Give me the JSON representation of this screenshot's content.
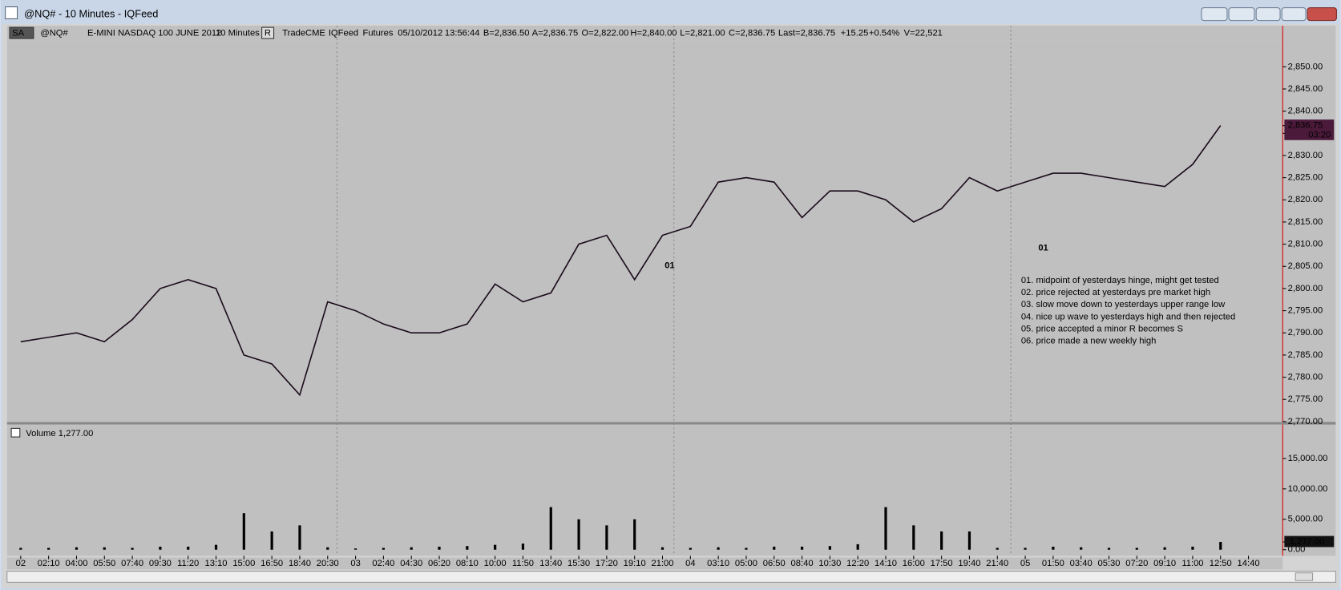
{
  "window": {
    "title": "@NQ# - 10 Minutes - IQFeed"
  },
  "toolbar": {
    "items": [
      "SA",
      "@NQ#",
      "E-MINI NASDAQ 100 JUNE 2012",
      "10 Minutes",
      "R",
      "Trade",
      "CME",
      "IQFeed",
      "Futures",
      "05/10/2012",
      "13:56:44",
      "B=2,836.50",
      "A=2,836.75",
      "O=2,822.00",
      "H=2,840.00",
      "L=2,821.00",
      "C=2,836.75",
      "Last=2,836.75",
      "+15.25",
      "+0.54%",
      "V=22,521"
    ]
  },
  "notes": [
    "01. midpoint of yesterdays hinge, might get tested",
    "02. price rejected at yesterdays pre market high",
    "03. slow move down to yesterdays upper range low",
    "04. nice up wave to yesterdays high and then rejected",
    "05. price accepted a minor R becomes S",
    "06. price made a new weekly high"
  ],
  "chart_data": [
    {
      "type": "line",
      "color": "#1a0a1a",
      "categories": [
        "02",
        "02:10",
        "04:00",
        "05:50",
        "07:40",
        "09:30",
        "11:20",
        "13:10",
        "15:00",
        "16:50",
        "18:40",
        "20:30",
        "03",
        "02:40",
        "04:30",
        "06:20",
        "08:10",
        "10:00",
        "11:50",
        "13:40",
        "15:30",
        "17:20",
        "19:10",
        "21:00",
        "04",
        "03:10",
        "05:00",
        "06:50",
        "08:40",
        "10:30",
        "12:20",
        "14:10",
        "16:00",
        "17:50",
        "19:40",
        "21:40",
        "05",
        "01:50",
        "03:40",
        "05:30",
        "07:20",
        "09:10",
        "11:00",
        "12:50",
        "14:40"
      ],
      "values": [
        2788,
        2789,
        2790,
        2788,
        2793,
        2800,
        2802,
        2800,
        2785,
        2783,
        2776,
        2797,
        2795,
        2792,
        2790,
        2790,
        2792,
        2801,
        2797,
        2799,
        2810,
        2812,
        2802,
        2812,
        2814,
        2824,
        2825,
        2824,
        2816,
        2822,
        2822,
        2820,
        2815,
        2818,
        2825,
        2822,
        2824,
        2826,
        2826,
        2825,
        2824,
        2823,
        2828,
        2836.75,
        null
      ],
      "ylim": [
        2770,
        2856
      ],
      "yticks": [
        {
          "value": 2770,
          "label": "2,770.00"
        },
        {
          "value": 2775,
          "label": "2,775.00"
        },
        {
          "value": 2780,
          "label": "2,780.00"
        },
        {
          "value": 2785,
          "label": "2,785.00"
        },
        {
          "value": 2790,
          "label": "2,790.00"
        },
        {
          "value": 2795,
          "label": "2,795.00"
        },
        {
          "value": 2800,
          "label": "2,800.00"
        },
        {
          "value": 2805,
          "label": "2,805.00"
        },
        {
          "value": 2810,
          "label": "2,810.00"
        },
        {
          "value": 2815,
          "label": "2,815.00"
        },
        {
          "value": 2820,
          "label": "2,820.00"
        },
        {
          "value": 2825,
          "label": "2,825.00"
        },
        {
          "value": 2830,
          "label": "2,830.00"
        },
        {
          "value": 2835,
          "label": "2,835.00"
        },
        {
          "value": 2840,
          "label": "2,840.00"
        },
        {
          "value": 2845,
          "label": "2,845.00"
        },
        {
          "value": 2850,
          "label": "2,850.00"
        }
      ],
      "last_price": {
        "value": 2836.75,
        "label": "2,836.75"
      },
      "bar_timer": "03:20",
      "annotations": [
        "01",
        "01"
      ]
    },
    {
      "type": "bar",
      "title": "Volume",
      "legend_value": "1,277.00",
      "color": "#000000",
      "values": [
        300,
        300,
        400,
        400,
        300,
        500,
        500,
        800,
        6000,
        3000,
        4000,
        400,
        200,
        300,
        400,
        500,
        600,
        800,
        1000,
        7000,
        5000,
        4000,
        5000,
        400,
        300,
        400,
        300,
        500,
        500,
        600,
        900,
        7000,
        4000,
        3000,
        3000,
        300,
        300,
        500,
        400,
        300,
        300,
        400,
        500,
        1277,
        null
      ],
      "ylim": [
        -1000,
        20500
      ],
      "yticks": [
        {
          "value": 0,
          "label": "0.00"
        },
        {
          "value": 5000,
          "label": "5,000.00"
        },
        {
          "value": 10000,
          "label": "10,000.00"
        },
        {
          "value": 15000,
          "label": "15,000.00"
        }
      ],
      "last_value": {
        "value": 1277,
        "label": "1,277.00"
      }
    }
  ]
}
